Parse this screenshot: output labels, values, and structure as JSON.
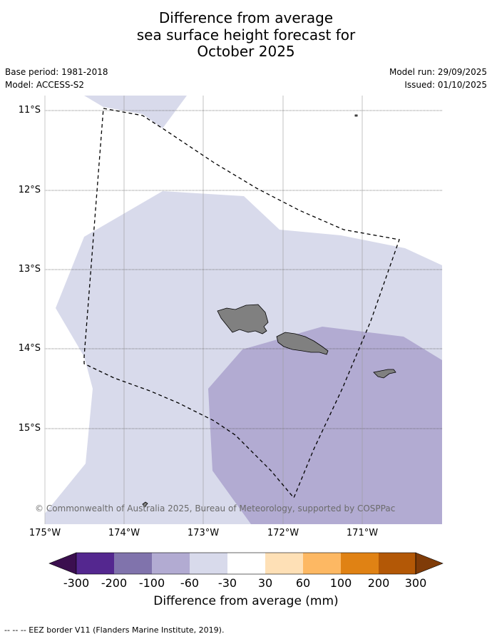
{
  "title": {
    "line1": "Difference from average",
    "line2": "sea surface height forecast for",
    "line3": "October 2025"
  },
  "meta": {
    "base_period": "Base period: 1981-2018",
    "model": "Model: ACCESS-S2",
    "model_run": "Model run: 29/09/2025",
    "issued": "Issued: 01/10/2025"
  },
  "axes": {
    "lat_labels": [
      "11°S",
      "12°S",
      "13°S",
      "14°S",
      "15°S"
    ],
    "lon_labels": [
      "175°W",
      "174°W",
      "173°W",
      "172°W",
      "171°W"
    ]
  },
  "credit": "© Commonwealth of Australia 2025, Bureau of Meteorology, supported by COSPPac",
  "colorbar": {
    "ticks": [
      "-300",
      "-200",
      "-100",
      "-60",
      "-30",
      "30",
      "60",
      "100",
      "200",
      "300"
    ],
    "colors": [
      "#3b0f4f",
      "#54278f",
      "#8073ac",
      "#b2abd2",
      "#d8daeb",
      "#ffffff",
      "#fee0b6",
      "#fdb863",
      "#e08214",
      "#b35806",
      "#7f3b08"
    ],
    "label": "Difference from average (mm)"
  },
  "map_colors": {
    "band_minus30_minus60": "#d8daeb",
    "band_minus60_minus100": "#b2abd2",
    "land": "#808080"
  },
  "legend_note": "--  --  -- EEZ border V11 (Flanders Marine Institute, 2019)."
}
